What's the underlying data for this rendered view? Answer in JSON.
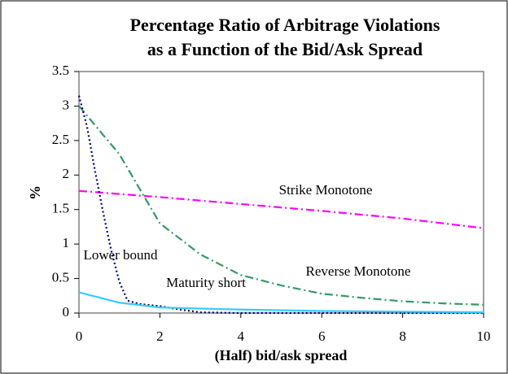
{
  "chart_data": {
    "type": "line",
    "title": [
      "Percentage Ratio of Arbitrage Violations",
      "as a Function of the Bid/Ask Spread"
    ],
    "x_label": "(Half) bid/ask spread",
    "y_label": "%",
    "xlim": [
      0,
      10
    ],
    "xticks": [
      0,
      2,
      4,
      6,
      8,
      10
    ],
    "ylim": [
      0,
      3.5
    ],
    "yticks": [
      0,
      0.5,
      1,
      1.5,
      2,
      2.5,
      3,
      3.5
    ],
    "series": [
      {
        "name": "Strike Monotone",
        "color": "#ff00ff",
        "dash": "dashdot",
        "x": [
          0,
          2,
          4,
          6,
          8,
          10
        ],
        "values": [
          1.77,
          1.68,
          1.58,
          1.48,
          1.37,
          1.23
        ]
      },
      {
        "name": "Reverse Monotone",
        "color": "#339966",
        "dash": "dashdot",
        "x": [
          0,
          1,
          2,
          3,
          4,
          5,
          6,
          7,
          8,
          9,
          10
        ],
        "values": [
          3.0,
          2.3,
          1.3,
          0.85,
          0.55,
          0.4,
          0.28,
          0.22,
          0.17,
          0.14,
          0.12
        ]
      },
      {
        "name": "Lower bound",
        "color": "#000080",
        "dash": "dotted",
        "x": [
          0,
          0.2,
          0.4,
          0.6,
          0.8,
          1,
          1.2,
          1.5,
          2,
          2.5,
          3,
          4,
          6,
          8,
          10
        ],
        "values": [
          3.15,
          2.7,
          2.05,
          1.45,
          0.9,
          0.45,
          0.18,
          0.13,
          0.1,
          0.05,
          0.01,
          0,
          0,
          0,
          0
        ]
      },
      {
        "name": "Maturity short",
        "color": "#33ccff",
        "dash": "solid",
        "x": [
          0,
          1,
          2,
          4,
          6,
          8,
          10
        ],
        "values": [
          0.3,
          0.15,
          0.08,
          0.05,
          0.03,
          0.02,
          0.01
        ]
      }
    ]
  }
}
